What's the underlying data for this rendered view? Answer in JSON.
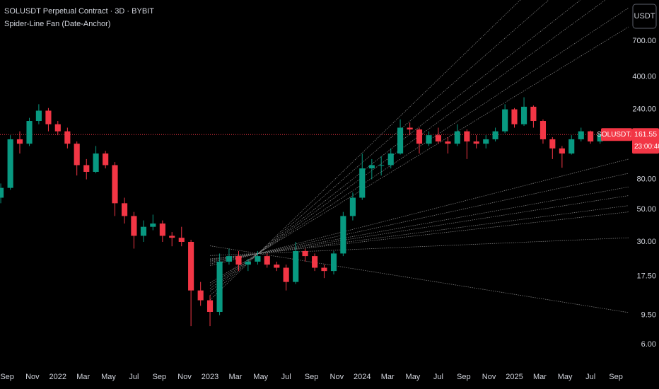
{
  "chart_data": {
    "type": "candlestick",
    "title": "SOLUSDT Perpetual Contract · 3D · BYBIT",
    "subtitle": "Spider-Line Fan (Date-Anchor)",
    "symbol_label": "SOLUSDT.P",
    "countdown": "23:00:40",
    "currency_button": "USDT",
    "log_scale": true,
    "grid": false,
    "up_color": "#089981",
    "down_color": "#f23645",
    "fan_color": "#9a9a9a",
    "xlim": [
      2021.62,
      2025.755
    ],
    "ylim": [
      4.65,
      1334
    ],
    "xticks": [
      {
        "value": 2021.667,
        "label": "Sep"
      },
      {
        "value": 2021.833,
        "label": "Nov"
      },
      2022,
      {
        "value": 2022.167,
        "label": "Mar"
      },
      {
        "value": 2022.333,
        "label": "May"
      },
      {
        "value": 2022.5,
        "label": "Jul"
      },
      {
        "value": 2022.667,
        "label": "Sep"
      },
      {
        "value": 2022.833,
        "label": "Nov"
      },
      2023,
      {
        "value": 2023.167,
        "label": "Mar"
      },
      {
        "value": 2023.333,
        "label": "May"
      },
      {
        "value": 2023.5,
        "label": "Jul"
      },
      {
        "value": 2023.667,
        "label": "Sep"
      },
      {
        "value": 2023.833,
        "label": "Nov"
      },
      2024,
      {
        "value": 2024.167,
        "label": "Mar"
      },
      {
        "value": 2024.333,
        "label": "May"
      },
      {
        "value": 2024.5,
        "label": "Jul"
      },
      {
        "value": 2024.667,
        "label": "Sep"
      },
      {
        "value": 2024.833,
        "label": "Nov"
      },
      2025,
      {
        "value": 2025.167,
        "label": "Mar"
      },
      {
        "value": 2025.333,
        "label": "May"
      },
      {
        "value": 2025.5,
        "label": "Jul"
      },
      {
        "value": 2025.667,
        "label": "Sep"
      }
    ],
    "yticks": [
      {
        "value": 700,
        "label": "700.00"
      },
      {
        "value": 400,
        "label": "400.00"
      },
      {
        "value": 240,
        "label": "240.00"
      },
      {
        "value": 80,
        "label": "80.00"
      },
      {
        "value": 50,
        "label": "50.00"
      },
      {
        "value": 30,
        "label": "30.00"
      },
      {
        "value": 17.5,
        "label": "17.50"
      },
      {
        "value": 9.5,
        "label": "9.50"
      },
      {
        "value": 6,
        "label": "6.00"
      }
    ],
    "candles": {
      "x": [
        2021.625,
        2021.688,
        2021.75,
        2021.813,
        2021.875,
        2021.938,
        2022.0,
        2022.063,
        2022.125,
        2022.188,
        2022.25,
        2022.313,
        2022.375,
        2022.438,
        2022.5,
        2022.563,
        2022.625,
        2022.688,
        2022.75,
        2022.813,
        2022.875,
        2022.938,
        2023.0,
        2023.063,
        2023.125,
        2023.188,
        2023.25,
        2023.313,
        2023.375,
        2023.438,
        2023.5,
        2023.563,
        2023.625,
        2023.688,
        2023.75,
        2023.813,
        2023.875,
        2023.938,
        2024.0,
        2024.063,
        2024.125,
        2024.188,
        2024.25,
        2024.313,
        2024.375,
        2024.438,
        2024.5,
        2024.563,
        2024.625,
        2024.688,
        2024.75,
        2024.813,
        2024.875,
        2024.938,
        2025.0,
        2025.063,
        2025.125,
        2025.188,
        2025.25,
        2025.313,
        2025.375,
        2025.438,
        2025.5,
        2025.563
      ],
      "open": [
        60,
        70,
        150,
        140,
        200,
        235,
        190,
        170,
        140,
        100,
        90,
        120,
        100,
        55,
        45,
        33,
        38,
        40,
        33,
        32,
        30,
        14,
        12,
        10,
        22,
        24,
        21,
        22,
        24,
        21,
        20,
        16,
        26,
        24,
        20,
        19,
        25,
        45,
        60,
        95,
        100,
        100,
        120,
        180,
        175,
        140,
        160,
        145,
        140,
        170,
        145,
        140,
        150,
        170,
        240,
        190,
        250,
        200,
        150,
        130,
        120,
        150,
        170,
        145
      ],
      "high": [
        75,
        160,
        170,
        210,
        260,
        245,
        200,
        180,
        145,
        110,
        135,
        125,
        105,
        60,
        48,
        42,
        46,
        42,
        35,
        38,
        31,
        16,
        13,
        25,
        27,
        26,
        23,
        26,
        25,
        22,
        21,
        30,
        27,
        25,
        21,
        26,
        48,
        65,
        120,
        110,
        115,
        130,
        205,
        195,
        180,
        170,
        180,
        155,
        190,
        175,
        160,
        160,
        180,
        260,
        245,
        290,
        255,
        205,
        155,
        135,
        160,
        180,
        172,
        165
      ],
      "low": [
        55,
        68,
        120,
        135,
        190,
        170,
        160,
        130,
        85,
        80,
        88,
        95,
        45,
        40,
        27,
        30,
        36,
        30,
        28,
        28,
        8,
        11,
        8,
        9.5,
        21,
        19,
        19,
        21,
        20,
        19,
        14,
        15.5,
        22,
        19,
        17,
        18,
        24,
        42,
        58,
        80,
        85,
        95,
        118,
        160,
        120,
        135,
        140,
        120,
        135,
        110,
        130,
        130,
        145,
        165,
        180,
        185,
        180,
        140,
        110,
        96,
        118,
        145,
        140,
        140
      ],
      "close": [
        70,
        150,
        140,
        200,
        235,
        190,
        170,
        140,
        100,
        90,
        120,
        100,
        55,
        45,
        33,
        38,
        40,
        33,
        32,
        30,
        14,
        12,
        10,
        22,
        24,
        21,
        22,
        24,
        21,
        20,
        16,
        26,
        24,
        20,
        19,
        25,
        45,
        60,
        95,
        100,
        100,
        120,
        180,
        175,
        140,
        160,
        145,
        140,
        170,
        145,
        140,
        150,
        170,
        240,
        190,
        250,
        200,
        150,
        130,
        120,
        150,
        170,
        145,
        161.55
      ]
    },
    "fan": {
      "anchor_x": 2023.316,
      "anchor_price": 25,
      "start_x": 2023.0,
      "end_x": 2025.75,
      "end_prices": [
        6890,
        3980,
        2415,
        1740,
        1180,
        875,
        110,
        88,
        71,
        62,
        53,
        48,
        32,
        9.9
      ]
    }
  }
}
